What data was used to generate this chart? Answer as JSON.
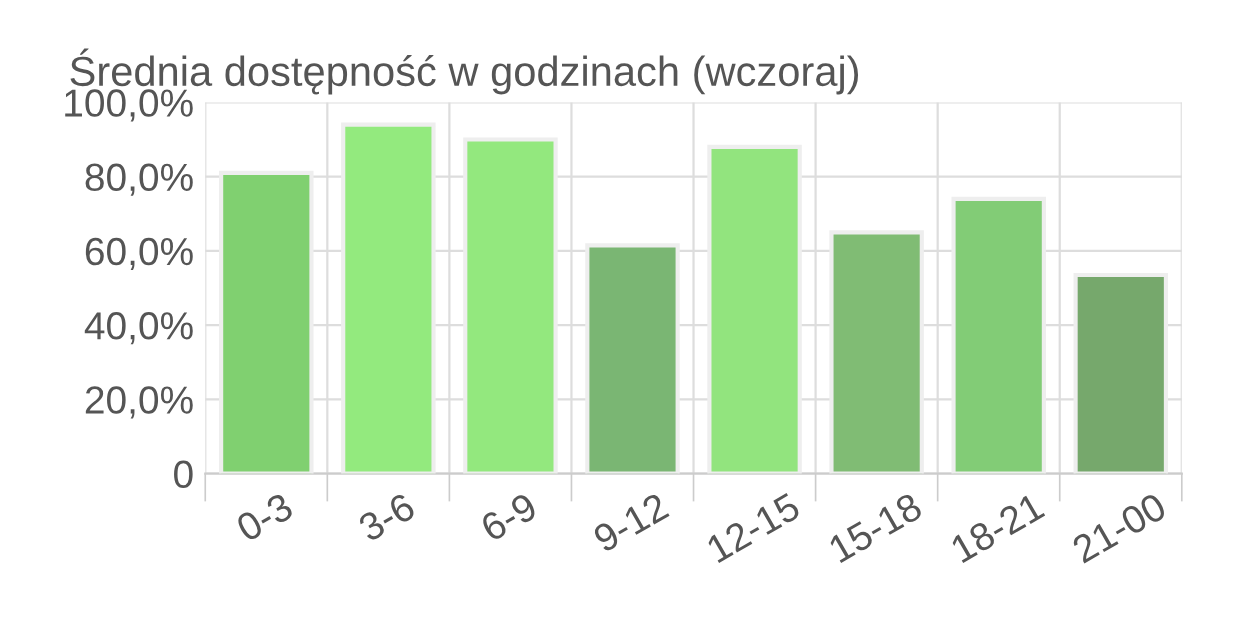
{
  "chart_data": {
    "type": "bar",
    "title": "Średnia dostępność w godzinach (wczoraj)",
    "categories": [
      "0-3",
      "3-6",
      "6-9",
      "9-12",
      "12-15",
      "15-18",
      "18-21",
      "21-00"
    ],
    "values": [
      81,
      94,
      90,
      61.5,
      88,
      65,
      74,
      53.5
    ],
    "colors": [
      "#80d070",
      "#93ea7e",
      "#93e87e",
      "#7ab673",
      "#92e47e",
      "#80bc74",
      "#82cc76",
      "#76a86c"
    ],
    "ylim": [
      0,
      100
    ],
    "yticks": [
      0,
      {
        "value": 20,
        "label": "20,0%"
      },
      {
        "value": 40,
        "label": "40,0%"
      },
      {
        "value": 60,
        "label": "60,0%"
      },
      {
        "value": 80,
        "label": "80,0%"
      },
      {
        "value": 100,
        "label": "100,0%"
      }
    ],
    "grid": true,
    "legend": false
  }
}
